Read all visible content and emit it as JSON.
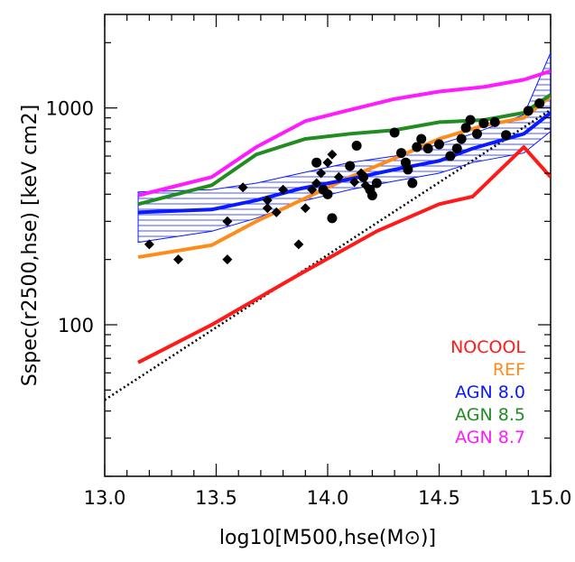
{
  "chart_data": {
    "type": "line",
    "xlabel": "log10[M500,hse(M⊙)]",
    "ylabel": "Sspec(r2500,hse)  [keV cm2]",
    "xlim": [
      13.0,
      15.0
    ],
    "ylim": [
      20,
      2700
    ],
    "y_scale": "log",
    "x_ticks": [
      13.0,
      13.5,
      14.0,
      14.5,
      15.0
    ],
    "x_tick_labels": [
      "13.0",
      "13.5",
      "14.0",
      "14.5",
      "15.0"
    ],
    "y_ticks": [
      100,
      1000
    ],
    "y_tick_labels": [
      "100",
      "1000"
    ],
    "legend_placement": "bottom-right",
    "series": [
      {
        "name": "NOCOOL",
        "color": "#ff1a1a",
        "x": [
          13.15,
          13.48,
          13.87,
          14.22,
          14.5,
          14.65,
          14.88,
          15.0
        ],
        "y": [
          67,
          100,
          170,
          270,
          360,
          390,
          660,
          480
        ]
      },
      {
        "name": "REF",
        "color": "#ff8c1a",
        "x": [
          13.15,
          13.48,
          13.68,
          13.88,
          14.1,
          14.3,
          14.5,
          14.7,
          14.88,
          15.0
        ],
        "y": [
          205,
          233,
          300,
          375,
          480,
          585,
          720,
          830,
          900,
          1130
        ]
      },
      {
        "name": "AGN 8.0",
        "color": "#0a1aff",
        "x": [
          13.15,
          13.48,
          13.68,
          13.88,
          14.1,
          14.3,
          14.5,
          14.65,
          14.88,
          15.0
        ],
        "y": [
          330,
          340,
          375,
          425,
          470,
          520,
          570,
          650,
          760,
          950
        ]
      },
      {
        "name": "AGN 8.5",
        "color": "#228b22",
        "x": [
          13.15,
          13.48,
          13.68,
          13.9,
          14.1,
          14.3,
          14.5,
          14.7,
          14.88,
          15.0
        ],
        "y": [
          360,
          440,
          610,
          720,
          760,
          790,
          860,
          880,
          950,
          1150
        ]
      },
      {
        "name": "AGN 8.7",
        "color": "#ff1aff",
        "x": [
          13.15,
          13.48,
          13.68,
          13.9,
          14.1,
          14.3,
          14.5,
          14.7,
          14.88,
          15.0
        ],
        "y": [
          395,
          480,
          660,
          870,
          980,
          1100,
          1190,
          1250,
          1350,
          1480
        ]
      }
    ],
    "band": {
      "series": "AGN 8.0",
      "color": "#0a1aff",
      "x": [
        13.15,
        13.48,
        13.68,
        13.88,
        14.1,
        14.3,
        14.5,
        14.65,
        14.88,
        15.0
      ],
      "upper": [
        410,
        420,
        450,
        500,
        560,
        600,
        680,
        760,
        930,
        1800
      ],
      "lower": [
        240,
        270,
        310,
        370,
        420,
        460,
        500,
        560,
        620,
        780
      ]
    },
    "dotted_line": {
      "x": [
        13.0,
        15.0
      ],
      "y": [
        45,
        980
      ]
    },
    "observations_circles": [
      [
        13.95,
        560
      ],
      [
        13.98,
        420
      ],
      [
        14.0,
        400
      ],
      [
        14.02,
        310
      ],
      [
        14.1,
        540
      ],
      [
        14.13,
        670
      ],
      [
        14.16,
        480
      ],
      [
        14.19,
        420
      ],
      [
        14.2,
        395
      ],
      [
        14.22,
        450
      ],
      [
        14.3,
        770
      ],
      [
        14.33,
        620
      ],
      [
        14.35,
        560
      ],
      [
        14.36,
        520
      ],
      [
        14.38,
        450
      ],
      [
        14.4,
        660
      ],
      [
        14.42,
        720
      ],
      [
        14.45,
        650
      ],
      [
        14.5,
        680
      ],
      [
        14.55,
        600
      ],
      [
        14.58,
        650
      ],
      [
        14.6,
        720
      ],
      [
        14.62,
        810
      ],
      [
        14.64,
        880
      ],
      [
        14.67,
        760
      ],
      [
        14.7,
        850
      ],
      [
        14.75,
        860
      ],
      [
        14.8,
        750
      ],
      [
        14.9,
        970
      ],
      [
        14.95,
        1050
      ]
    ],
    "observations_diamonds": [
      [
        13.2,
        235
      ],
      [
        13.33,
        200
      ],
      [
        13.55,
        300
      ],
      [
        13.55,
        200
      ],
      [
        13.62,
        430
      ],
      [
        13.73,
        345
      ],
      [
        13.73,
        375
      ],
      [
        13.77,
        330
      ],
      [
        13.8,
        420
      ],
      [
        13.87,
        235
      ],
      [
        13.9,
        345
      ],
      [
        13.93,
        420
      ],
      [
        13.95,
        450
      ],
      [
        13.97,
        500
      ],
      [
        14.0,
        560
      ],
      [
        14.02,
        610
      ],
      [
        14.05,
        480
      ],
      [
        14.12,
        455
      ],
      [
        14.15,
        500
      ],
      [
        14.17,
        440
      ]
    ]
  }
}
